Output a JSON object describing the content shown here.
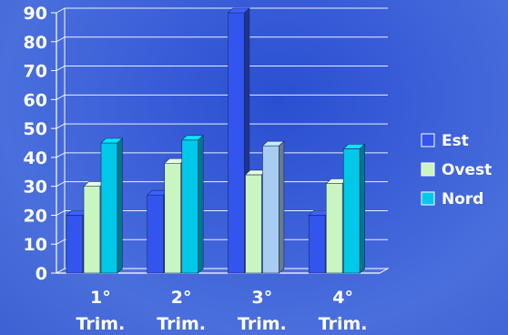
{
  "chart_data": {
    "type": "bar",
    "categories": [
      [
        "1°",
        "Trim."
      ],
      [
        "2°",
        "Trim."
      ],
      [
        "3°",
        "Trim."
      ],
      [
        "4°",
        "Trim."
      ]
    ],
    "series": [
      {
        "name": "Est",
        "values": [
          20,
          27,
          90,
          20
        ],
        "color": "#3355ee"
      },
      {
        "name": "Ovest",
        "values": [
          30,
          38,
          34,
          31
        ],
        "color": "#c8f5c0"
      },
      {
        "name": "Nord",
        "values": [
          45,
          46,
          44,
          43
        ],
        "color": "#00c8e8"
      }
    ],
    "ylim": [
      0,
      90
    ],
    "yticks": [
      0,
      10,
      20,
      30,
      40,
      50,
      60,
      70,
      80,
      90
    ],
    "grid": true,
    "legend": "right",
    "third_quarter_nord_color": "#a8cdf0"
  }
}
